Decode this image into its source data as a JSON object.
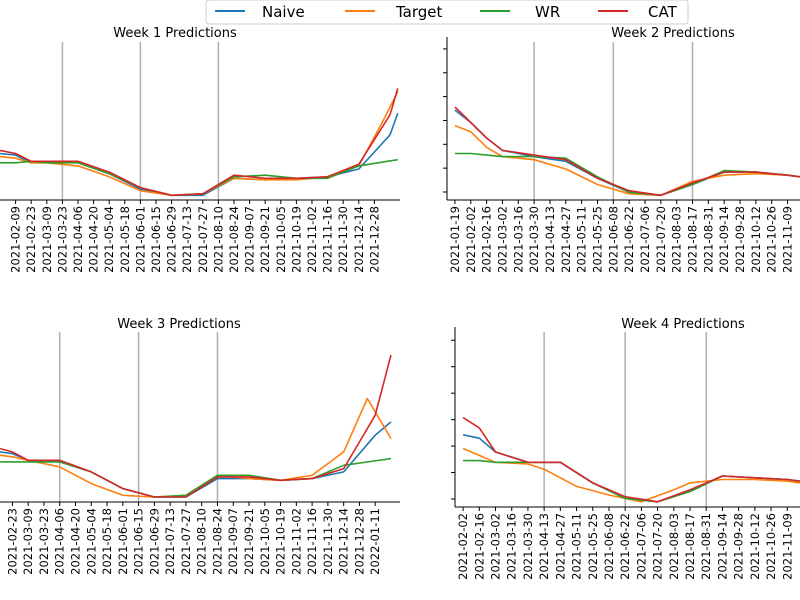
{
  "colors": {
    "naive": "#1f77b4",
    "target": "#ff7f0e",
    "wr": "#2ca02c",
    "cat": "#d62728",
    "vline": "#b0b0b0",
    "axis": "#000000"
  },
  "legend": {
    "placement": "top-center",
    "items": [
      {
        "key": "naive",
        "label": "Naive"
      },
      {
        "key": "target",
        "label": "Target"
      },
      {
        "key": "wr",
        "label": "WR"
      },
      {
        "key": "cat",
        "label": "CAT"
      }
    ]
  },
  "chart_data": [
    {
      "type": "line",
      "title": "Week 1 Predictions",
      "x_ticks": [
        "2021-02-09",
        "2021-02-23",
        "2021-03-09",
        "2021-03-23",
        "2021-04-06",
        "2021-04-20",
        "2021-05-04",
        "2021-05-18",
        "2021-06-01",
        "2021-06-15",
        "2021-06-29",
        "2021-07-13",
        "2021-07-27",
        "2021-08-10",
        "2021-08-24",
        "2021-09-07",
        "2021-09-21",
        "2021-10-05",
        "2021-10-19",
        "2021-11-02",
        "2021-11-16",
        "2021-11-30",
        "2021-12-14",
        "2021-12-28"
      ],
      "vlines": [
        "2021-03-23",
        "2021-06-01",
        "2021-08-10"
      ],
      "ylim": [
        0,
        100
      ],
      "x_range": [
        "2021-01-26",
        "2022-01-20"
      ],
      "series": [
        {
          "name": "Naive",
          "x": [
            "2021-01-26",
            "2021-02-09",
            "2021-02-23",
            "2021-03-09",
            "2021-04-06",
            "2021-05-04",
            "2021-06-01",
            "2021-06-29",
            "2021-07-27",
            "2021-08-24",
            "2021-09-21",
            "2021-10-19",
            "2021-11-16",
            "2021-12-14",
            "2022-01-11",
            "2022-01-18"
          ],
          "y": [
            30,
            29,
            24,
            25,
            24,
            17,
            7,
            3,
            3,
            14,
            13,
            14,
            15,
            20,
            42,
            56
          ]
        },
        {
          "name": "Target",
          "x": [
            "2021-01-26",
            "2021-02-09",
            "2021-02-23",
            "2021-03-09",
            "2021-04-06",
            "2021-05-04",
            "2021-06-01",
            "2021-06-29",
            "2021-07-27",
            "2021-08-24",
            "2021-09-21",
            "2021-10-19",
            "2021-11-16",
            "2021-12-14",
            "2022-01-04",
            "2022-01-18"
          ],
          "y": [
            28,
            27,
            24,
            24,
            22,
            15,
            6,
            3,
            4,
            14,
            13,
            13,
            15,
            22,
            50,
            70
          ]
        },
        {
          "name": "WR",
          "x": [
            "2021-01-26",
            "2021-02-09",
            "2021-02-23",
            "2021-03-09",
            "2021-04-06",
            "2021-05-04",
            "2021-06-01",
            "2021-06-29",
            "2021-07-27",
            "2021-08-24",
            "2021-09-21",
            "2021-10-19",
            "2021-11-16",
            "2021-12-14",
            "2022-01-18"
          ],
          "y": [
            24,
            24,
            25,
            24,
            24,
            17,
            8,
            3,
            4,
            15,
            16,
            14,
            14,
            22,
            26
          ]
        },
        {
          "name": "CAT",
          "x": [
            "2021-01-26",
            "2021-02-09",
            "2021-02-23",
            "2021-03-09",
            "2021-04-06",
            "2021-05-04",
            "2021-06-01",
            "2021-06-29",
            "2021-07-27",
            "2021-08-24",
            "2021-09-21",
            "2021-10-19",
            "2021-11-16",
            "2021-12-14",
            "2022-01-11",
            "2022-01-18"
          ],
          "y": [
            32,
            30,
            25,
            25,
            25,
            18,
            8,
            3,
            4,
            16,
            14,
            14,
            15,
            23,
            55,
            72
          ]
        }
      ]
    },
    {
      "type": "line",
      "title": "Week 2 Predictions",
      "x_ticks": [
        "2021-01-19",
        "2021-02-02",
        "2021-02-16",
        "2021-03-02",
        "2021-03-16",
        "2021-03-30",
        "2021-04-13",
        "2021-04-27",
        "2021-05-11",
        "2021-05-25",
        "2021-06-08",
        "2021-06-22",
        "2021-07-06",
        "2021-07-20",
        "2021-08-03",
        "2021-08-17",
        "2021-08-31",
        "2021-09-14",
        "2021-09-28",
        "2021-10-12",
        "2021-10-26",
        "2021-11-09"
      ],
      "vlines": [
        "2021-03-30",
        "2021-06-08",
        "2021-08-17"
      ],
      "ylim": [
        0,
        100
      ],
      "x_range": [
        "2021-01-12",
        "2021-11-20"
      ],
      "series": [
        {
          "name": "Naive",
          "x": [
            "2021-01-19",
            "2021-02-02",
            "2021-02-16",
            "2021-03-02",
            "2021-03-30",
            "2021-04-27",
            "2021-05-25",
            "2021-06-22",
            "2021-07-20",
            "2021-08-17",
            "2021-09-14",
            "2021-10-12",
            "2021-11-09",
            "2021-11-20"
          ],
          "y": [
            58,
            50,
            40,
            32,
            28,
            25,
            14,
            5,
            3,
            10,
            18,
            18,
            16,
            15
          ]
        },
        {
          "name": "Target",
          "x": [
            "2021-01-19",
            "2021-02-02",
            "2021-02-16",
            "2021-03-02",
            "2021-03-30",
            "2021-04-27",
            "2021-05-25",
            "2021-06-22",
            "2021-07-20",
            "2021-08-17",
            "2021-09-14",
            "2021-10-12",
            "2021-11-09",
            "2021-11-20"
          ],
          "y": [
            48,
            44,
            34,
            28,
            26,
            20,
            10,
            4,
            3,
            12,
            16,
            17,
            16,
            15
          ]
        },
        {
          "name": "WR",
          "x": [
            "2021-01-19",
            "2021-02-02",
            "2021-02-16",
            "2021-03-02",
            "2021-03-30",
            "2021-04-27",
            "2021-05-25",
            "2021-06-22",
            "2021-07-20",
            "2021-08-17",
            "2021-09-14",
            "2021-10-12",
            "2021-11-09",
            "2021-11-20"
          ],
          "y": [
            30,
            30,
            29,
            28,
            28,
            27,
            15,
            5,
            3,
            10,
            19,
            18,
            16,
            15
          ]
        },
        {
          "name": "CAT",
          "x": [
            "2021-01-19",
            "2021-02-02",
            "2021-02-16",
            "2021-03-02",
            "2021-03-30",
            "2021-04-27",
            "2021-05-25",
            "2021-06-22",
            "2021-07-20",
            "2021-08-17",
            "2021-09-14",
            "2021-10-12",
            "2021-11-09",
            "2021-11-20"
          ],
          "y": [
            60,
            50,
            40,
            32,
            29,
            26,
            14,
            6,
            3,
            11,
            18,
            18,
            16,
            15
          ]
        }
      ]
    },
    {
      "type": "line",
      "title": "Week 3 Predictions",
      "x_ticks": [
        "2021-02-23",
        "2021-03-09",
        "2021-03-23",
        "2021-04-06",
        "2021-04-20",
        "2021-05-04",
        "2021-05-18",
        "2021-06-01",
        "2021-06-15",
        "2021-06-29",
        "2021-07-13",
        "2021-07-27",
        "2021-08-10",
        "2021-08-24",
        "2021-09-07",
        "2021-09-21",
        "2021-10-05",
        "2021-10-19",
        "2021-11-02",
        "2021-11-16",
        "2021-11-30",
        "2021-12-14",
        "2021-12-28",
        "2022-01-11"
      ],
      "vlines": [
        "2021-04-06",
        "2021-06-15",
        "2021-08-24"
      ],
      "ylim": [
        0,
        100
      ],
      "x_range": [
        "2021-02-12",
        "2022-02-02"
      ],
      "series": [
        {
          "name": "Naive",
          "x": [
            "2021-02-12",
            "2021-02-23",
            "2021-03-09",
            "2021-04-06",
            "2021-05-04",
            "2021-06-01",
            "2021-06-29",
            "2021-07-27",
            "2021-08-24",
            "2021-09-21",
            "2021-10-19",
            "2021-11-16",
            "2021-12-14",
            "2022-01-11",
            "2022-01-25"
          ],
          "y": [
            30,
            29,
            25,
            24,
            18,
            8,
            3,
            3,
            14,
            14,
            13,
            14,
            18,
            40,
            48
          ]
        },
        {
          "name": "Target",
          "x": [
            "2021-02-12",
            "2021-02-23",
            "2021-03-09",
            "2021-04-06",
            "2021-05-04",
            "2021-06-01",
            "2021-06-29",
            "2021-07-27",
            "2021-08-24",
            "2021-09-21",
            "2021-10-19",
            "2021-11-16",
            "2021-12-14",
            "2022-01-04",
            "2022-01-25"
          ],
          "y": [
            28,
            27,
            25,
            21,
            11,
            4,
            3,
            4,
            16,
            14,
            13,
            16,
            30,
            62,
            38
          ]
        },
        {
          "name": "WR",
          "x": [
            "2021-02-12",
            "2021-02-23",
            "2021-03-09",
            "2021-04-06",
            "2021-05-04",
            "2021-06-01",
            "2021-06-29",
            "2021-07-27",
            "2021-08-24",
            "2021-09-21",
            "2021-10-19",
            "2021-11-16",
            "2021-12-14",
            "2022-01-25"
          ],
          "y": [
            24,
            24,
            24,
            24,
            18,
            8,
            3,
            4,
            16,
            16,
            13,
            14,
            22,
            26
          ]
        },
        {
          "name": "CAT",
          "x": [
            "2021-02-12",
            "2021-02-23",
            "2021-03-09",
            "2021-04-06",
            "2021-05-04",
            "2021-06-01",
            "2021-06-29",
            "2021-07-27",
            "2021-08-24",
            "2021-09-21",
            "2021-10-19",
            "2021-11-16",
            "2021-12-14",
            "2022-01-11",
            "2022-01-25"
          ],
          "y": [
            32,
            30,
            25,
            25,
            18,
            8,
            3,
            3,
            15,
            15,
            13,
            14,
            20,
            52,
            88
          ]
        }
      ]
    },
    {
      "type": "line",
      "title": "Week 4 Predictions",
      "x_ticks": [
        "2021-02-02",
        "2021-02-16",
        "2021-03-02",
        "2021-03-16",
        "2021-03-30",
        "2021-04-13",
        "2021-04-27",
        "2021-05-11",
        "2021-05-25",
        "2021-06-08",
        "2021-06-22",
        "2021-07-06",
        "2021-07-20",
        "2021-08-03",
        "2021-08-17",
        "2021-08-31",
        "2021-09-14",
        "2021-09-28",
        "2021-10-12",
        "2021-10-26",
        "2021-11-09"
      ],
      "vlines": [
        "2021-04-13",
        "2021-06-22",
        "2021-08-31"
      ],
      "ylim": [
        0,
        100
      ],
      "x_range": [
        "2021-01-26",
        "2021-11-20"
      ],
      "series": [
        {
          "name": "Naive",
          "x": [
            "2021-02-02",
            "2021-02-16",
            "2021-03-02",
            "2021-03-30",
            "2021-04-27",
            "2021-05-25",
            "2021-06-22",
            "2021-07-20",
            "2021-08-17",
            "2021-09-14",
            "2021-10-12",
            "2021-11-09",
            "2021-11-20"
          ],
          "y": [
            42,
            40,
            32,
            26,
            26,
            14,
            5,
            3,
            9,
            18,
            17,
            16,
            15
          ]
        },
        {
          "name": "Target",
          "x": [
            "2021-02-02",
            "2021-02-16",
            "2021-03-02",
            "2021-03-30",
            "2021-04-13",
            "2021-05-11",
            "2021-06-08",
            "2021-07-06",
            "2021-08-03",
            "2021-08-17",
            "2021-09-14",
            "2021-10-12",
            "2021-11-09",
            "2021-11-20"
          ],
          "y": [
            34,
            30,
            26,
            25,
            22,
            12,
            7,
            3,
            10,
            14,
            16,
            16,
            15,
            14
          ]
        },
        {
          "name": "WR",
          "x": [
            "2021-02-02",
            "2021-02-16",
            "2021-03-02",
            "2021-03-30",
            "2021-04-27",
            "2021-05-25",
            "2021-06-22",
            "2021-07-20",
            "2021-08-17",
            "2021-09-14",
            "2021-10-12",
            "2021-11-09",
            "2021-11-20"
          ],
          "y": [
            27,
            27,
            26,
            26,
            26,
            14,
            5,
            3,
            9,
            18,
            17,
            16,
            15
          ]
        },
        {
          "name": "CAT",
          "x": [
            "2021-02-02",
            "2021-02-16",
            "2021-03-02",
            "2021-03-30",
            "2021-04-27",
            "2021-05-25",
            "2021-06-22",
            "2021-07-20",
            "2021-08-17",
            "2021-09-14",
            "2021-10-12",
            "2021-11-09",
            "2021-11-20"
          ],
          "y": [
            52,
            46,
            32,
            26,
            26,
            14,
            6,
            3,
            10,
            18,
            17,
            16,
            15
          ]
        }
      ]
    }
  ]
}
